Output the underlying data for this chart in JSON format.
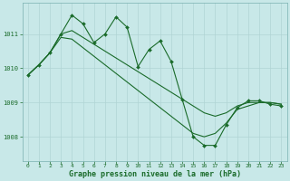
{
  "title": "Graphe pression niveau de la mer (hPa)",
  "bg_color": "#c8e8e8",
  "grid_color": "#b0d4d4",
  "line_color": "#1a6b2a",
  "xlim": [
    -0.5,
    23.5
  ],
  "ylim": [
    1007.3,
    1011.9
  ],
  "yticks": [
    1008,
    1009,
    1010,
    1011
  ],
  "xticks": [
    0,
    1,
    2,
    3,
    4,
    5,
    6,
    7,
    8,
    9,
    10,
    11,
    12,
    13,
    14,
    15,
    16,
    17,
    18,
    19,
    20,
    21,
    22,
    23
  ],
  "series1": [
    1009.8,
    1010.1,
    1010.45,
    1011.0,
    1011.55,
    1011.3,
    1010.75,
    1011.0,
    1011.5,
    1011.2,
    1010.05,
    1010.55,
    1010.8,
    1010.2,
    1009.1,
    1008.0,
    1007.75,
    1007.75,
    1008.35,
    1008.85,
    1009.05,
    1009.05,
    1008.95,
    1008.9
  ],
  "series2": [
    1009.8,
    1010.1,
    1010.45,
    1011.0,
    1011.1,
    1010.9,
    1010.7,
    1010.5,
    1010.3,
    1010.1,
    1009.9,
    1009.7,
    1009.5,
    1009.3,
    1009.1,
    1008.9,
    1008.7,
    1008.6,
    1008.7,
    1008.9,
    1009.0,
    1009.0,
    1009.0,
    1008.95
  ],
  "series3": [
    1009.8,
    1010.1,
    1010.45,
    1010.9,
    1010.85,
    1010.6,
    1010.35,
    1010.1,
    1009.85,
    1009.6,
    1009.35,
    1009.1,
    1008.85,
    1008.6,
    1008.35,
    1008.1,
    1008.0,
    1008.1,
    1008.4,
    1008.8,
    1008.9,
    1009.0,
    1009.0,
    1008.95
  ]
}
